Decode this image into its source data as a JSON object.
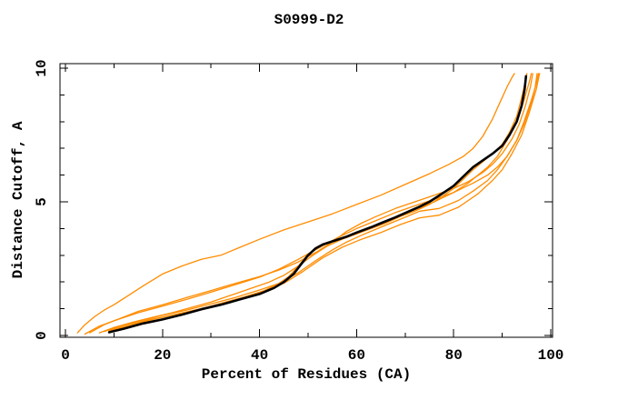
{
  "page": {
    "background": "#ffffff"
  },
  "chart_data": {
    "type": "line",
    "title": "S0999-D2",
    "xlabel": "Percent of Residues (CA)",
    "ylabel": "Distance Cutoff, A",
    "xlim": [
      0,
      100
    ],
    "ylim": [
      0,
      10
    ],
    "grid": false,
    "legend_position": "none",
    "frame": "box-with-inward-ticks",
    "x_major_ticks": [
      0,
      20,
      40,
      60,
      80,
      100
    ],
    "x_minor_ticks": [
      10,
      30,
      50,
      70,
      90
    ],
    "y_major_ticks": [
      0,
      5,
      10
    ],
    "y_minor_ticks": [
      1,
      2,
      3,
      4,
      6,
      7,
      8,
      9
    ],
    "colors": {
      "reference_models": "#ff8c00",
      "highlighted_model": "#000000"
    },
    "series": [
      {
        "name": "orange-outlier",
        "role": "reference",
        "color": "#ff8c00",
        "width": 1.3,
        "points": [
          [
            2.5,
            0.1
          ],
          [
            4,
            0.4
          ],
          [
            6,
            0.7
          ],
          [
            8,
            0.95
          ],
          [
            10,
            1.15
          ],
          [
            13,
            1.5
          ],
          [
            16,
            1.85
          ],
          [
            20,
            2.3
          ],
          [
            24,
            2.6
          ],
          [
            28,
            2.85
          ],
          [
            32,
            3.0
          ],
          [
            36,
            3.3
          ],
          [
            40,
            3.6
          ],
          [
            45,
            3.95
          ],
          [
            50,
            4.25
          ],
          [
            55,
            4.55
          ],
          [
            60,
            4.9
          ],
          [
            65,
            5.25
          ],
          [
            70,
            5.65
          ],
          [
            75,
            6.05
          ],
          [
            79,
            6.4
          ],
          [
            82,
            6.7
          ],
          [
            84,
            7.0
          ],
          [
            86,
            7.45
          ],
          [
            88,
            8.1
          ],
          [
            89.5,
            8.7
          ],
          [
            91,
            9.3
          ],
          [
            92,
            9.65
          ],
          [
            92.5,
            9.8
          ]
        ]
      },
      {
        "name": "orange-2",
        "role": "reference",
        "color": "#ff8c00",
        "width": 1.3,
        "points": [
          [
            5,
            0.1
          ],
          [
            8,
            0.4
          ],
          [
            11,
            0.62
          ],
          [
            15,
            0.9
          ],
          [
            20,
            1.15
          ],
          [
            25,
            1.42
          ],
          [
            30,
            1.68
          ],
          [
            35,
            1.95
          ],
          [
            40,
            2.2
          ],
          [
            44,
            2.45
          ],
          [
            48,
            2.75
          ],
          [
            52,
            3.15
          ],
          [
            55,
            3.5
          ],
          [
            58,
            3.9
          ],
          [
            61,
            4.2
          ],
          [
            64,
            4.45
          ],
          [
            68,
            4.75
          ],
          [
            72,
            5.0
          ],
          [
            76,
            5.25
          ],
          [
            80,
            5.5
          ],
          [
            83,
            5.75
          ],
          [
            86,
            6.1
          ],
          [
            88,
            6.4
          ],
          [
            90,
            6.8
          ],
          [
            92,
            7.35
          ],
          [
            93.5,
            7.9
          ],
          [
            94.8,
            8.6
          ],
          [
            95.8,
            9.3
          ],
          [
            96.3,
            9.8
          ]
        ]
      },
      {
        "name": "orange-3",
        "role": "reference",
        "color": "#ff8c00",
        "width": 1.3,
        "points": [
          [
            4,
            0.05
          ],
          [
            7,
            0.35
          ],
          [
            10,
            0.55
          ],
          [
            15,
            0.85
          ],
          [
            20,
            1.1
          ],
          [
            25,
            1.35
          ],
          [
            30,
            1.62
          ],
          [
            35,
            1.9
          ],
          [
            40,
            2.18
          ],
          [
            44,
            2.48
          ],
          [
            48,
            2.85
          ],
          [
            52,
            3.25
          ],
          [
            56,
            3.65
          ],
          [
            60,
            4.0
          ],
          [
            64,
            4.3
          ],
          [
            68,
            4.6
          ],
          [
            72,
            4.85
          ],
          [
            76,
            5.1
          ],
          [
            80,
            5.35
          ],
          [
            84,
            5.7
          ],
          [
            87,
            6.0
          ],
          [
            89,
            6.3
          ],
          [
            91,
            6.7
          ],
          [
            93,
            7.3
          ],
          [
            94.5,
            7.9
          ],
          [
            96,
            8.7
          ],
          [
            96.8,
            9.3
          ],
          [
            97.2,
            9.8
          ]
        ]
      },
      {
        "name": "orange-4",
        "role": "reference",
        "color": "#ff8c00",
        "width": 1.3,
        "points": [
          [
            7,
            0.1
          ],
          [
            10,
            0.3
          ],
          [
            14,
            0.5
          ],
          [
            18,
            0.68
          ],
          [
            22,
            0.85
          ],
          [
            26,
            1.05
          ],
          [
            30,
            1.25
          ],
          [
            34,
            1.5
          ],
          [
            38,
            1.75
          ],
          [
            42,
            2.0
          ],
          [
            45,
            2.25
          ],
          [
            48,
            2.6
          ],
          [
            51,
            3.0
          ],
          [
            54,
            3.35
          ],
          [
            57,
            3.6
          ],
          [
            60,
            3.8
          ],
          [
            64,
            4.1
          ],
          [
            68,
            4.4
          ],
          [
            72,
            4.7
          ],
          [
            76,
            5.0
          ],
          [
            80,
            5.35
          ],
          [
            83,
            5.7
          ],
          [
            85,
            6.0
          ],
          [
            87,
            6.3
          ],
          [
            89,
            6.7
          ],
          [
            91,
            7.3
          ],
          [
            93,
            8.0
          ],
          [
            94.5,
            8.8
          ],
          [
            95.6,
            9.5
          ],
          [
            96,
            9.8
          ]
        ]
      },
      {
        "name": "orange-5",
        "role": "reference",
        "color": "#ff8c00",
        "width": 1.3,
        "points": [
          [
            8,
            0.15
          ],
          [
            12,
            0.4
          ],
          [
            16,
            0.58
          ],
          [
            20,
            0.75
          ],
          [
            25,
            0.95
          ],
          [
            30,
            1.18
          ],
          [
            35,
            1.42
          ],
          [
            40,
            1.7
          ],
          [
            44,
            1.95
          ],
          [
            48,
            2.35
          ],
          [
            52,
            2.85
          ],
          [
            55,
            3.2
          ],
          [
            58,
            3.5
          ],
          [
            61,
            3.75
          ],
          [
            65,
            4.05
          ],
          [
            69,
            4.35
          ],
          [
            73,
            4.65
          ],
          [
            77,
            4.75
          ],
          [
            81,
            5.05
          ],
          [
            84,
            5.4
          ],
          [
            87,
            5.8
          ],
          [
            89,
            6.2
          ],
          [
            91,
            6.7
          ],
          [
            93,
            7.3
          ],
          [
            94.5,
            8.0
          ],
          [
            96,
            8.8
          ],
          [
            97,
            9.4
          ],
          [
            97.5,
            9.8
          ]
        ]
      },
      {
        "name": "orange-6",
        "role": "reference",
        "color": "#ff8c00",
        "width": 1.3,
        "points": [
          [
            9,
            0.18
          ],
          [
            13,
            0.4
          ],
          [
            17,
            0.58
          ],
          [
            21,
            0.72
          ],
          [
            26,
            0.92
          ],
          [
            31,
            1.12
          ],
          [
            36,
            1.38
          ],
          [
            41,
            1.65
          ],
          [
            45,
            1.95
          ],
          [
            49,
            2.4
          ],
          [
            53,
            2.9
          ],
          [
            57,
            3.3
          ],
          [
            61,
            3.6
          ],
          [
            65,
            3.85
          ],
          [
            69,
            4.15
          ],
          [
            73,
            4.4
          ],
          [
            77,
            4.5
          ],
          [
            81,
            4.8
          ],
          [
            85,
            5.3
          ],
          [
            88,
            5.8
          ],
          [
            90,
            6.2
          ],
          [
            92,
            6.8
          ],
          [
            94,
            7.5
          ],
          [
            95.5,
            8.3
          ],
          [
            97,
            9.2
          ],
          [
            97.7,
            9.8
          ]
        ]
      },
      {
        "name": "orange-7",
        "role": "reference",
        "color": "#ff8c00",
        "width": 1.3,
        "points": [
          [
            9,
            0.15
          ],
          [
            13,
            0.35
          ],
          [
            17,
            0.55
          ],
          [
            21,
            0.72
          ],
          [
            25,
            0.88
          ],
          [
            29,
            1.05
          ],
          [
            33,
            1.25
          ],
          [
            37,
            1.45
          ],
          [
            41,
            1.68
          ],
          [
            44,
            1.95
          ],
          [
            46,
            2.2
          ],
          [
            48,
            2.6
          ],
          [
            50,
            3.05
          ],
          [
            52,
            3.3
          ],
          [
            54,
            3.45
          ],
          [
            57,
            3.62
          ],
          [
            60,
            3.8
          ],
          [
            63,
            4.0
          ],
          [
            66,
            4.2
          ],
          [
            69,
            4.45
          ],
          [
            72,
            4.65
          ],
          [
            75,
            4.9
          ],
          [
            78,
            5.25
          ],
          [
            80,
            5.5
          ],
          [
            82,
            5.85
          ],
          [
            84,
            6.2
          ],
          [
            86,
            6.5
          ],
          [
            88,
            6.8
          ],
          [
            90,
            7.15
          ],
          [
            91.5,
            7.6
          ],
          [
            93,
            8.2
          ],
          [
            94,
            8.9
          ],
          [
            94.8,
            9.5
          ],
          [
            95.1,
            9.8
          ]
        ]
      },
      {
        "name": "black-model",
        "role": "highlighted",
        "color": "#000000",
        "width": 2.6,
        "points": [
          [
            9,
            0.12
          ],
          [
            12,
            0.25
          ],
          [
            16,
            0.45
          ],
          [
            20,
            0.6
          ],
          [
            24,
            0.78
          ],
          [
            28,
            0.98
          ],
          [
            32,
            1.15
          ],
          [
            36,
            1.35
          ],
          [
            40,
            1.55
          ],
          [
            43,
            1.78
          ],
          [
            45,
            2.0
          ],
          [
            47,
            2.3
          ],
          [
            48.5,
            2.65
          ],
          [
            50,
            3.0
          ],
          [
            51.5,
            3.25
          ],
          [
            53,
            3.4
          ],
          [
            55,
            3.52
          ],
          [
            58,
            3.7
          ],
          [
            60,
            3.85
          ],
          [
            63,
            4.05
          ],
          [
            65,
            4.2
          ],
          [
            68,
            4.42
          ],
          [
            70,
            4.58
          ],
          [
            73,
            4.82
          ],
          [
            75,
            5.0
          ],
          [
            78,
            5.35
          ],
          [
            80,
            5.6
          ],
          [
            82,
            5.95
          ],
          [
            84,
            6.3
          ],
          [
            86,
            6.55
          ],
          [
            88,
            6.8
          ],
          [
            90,
            7.1
          ],
          [
            91.5,
            7.5
          ],
          [
            93,
            8.0
          ],
          [
            94,
            8.6
          ],
          [
            94.6,
            9.2
          ],
          [
            94.9,
            9.7
          ]
        ]
      }
    ]
  }
}
